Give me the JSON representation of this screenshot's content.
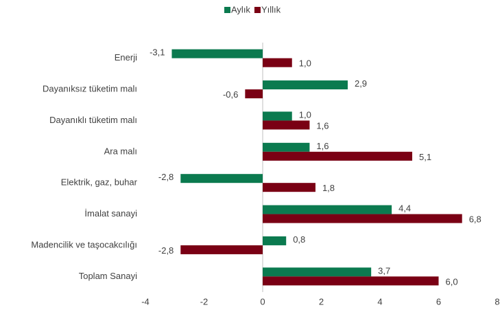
{
  "chart_data": {
    "type": "bar",
    "orientation": "horizontal",
    "categories": [
      "Enerji",
      "Dayanıksız tüketim malı",
      "Dayanıklı tüketim malı",
      "Ara malı",
      "Elektrik, gaz, buhar",
      "İmalat sanayi",
      "Madencilik ve taşocakcılığı",
      "Toplam Sanayi"
    ],
    "series": [
      {
        "name": "Aylık",
        "color": "#0b7a4f",
        "values": [
          -3.1,
          2.9,
          1.0,
          1.6,
          -2.8,
          4.4,
          0.8,
          3.7
        ],
        "value_labels": [
          "-3,1",
          "2,9",
          "1,0",
          "1,6",
          "-2,8",
          "4,4",
          "0,8",
          "3,7"
        ]
      },
      {
        "name": "Yıllık",
        "color": "#7a0014",
        "values": [
          1.0,
          -0.6,
          1.6,
          5.1,
          1.8,
          6.8,
          -2.8,
          6.0
        ],
        "value_labels": [
          "1,0",
          "-0,6",
          "1,6",
          "5,1",
          "1,8",
          "6,8",
          "-2,8",
          "6,0"
        ]
      }
    ],
    "xlim": [
      -4,
      8
    ],
    "xticks": [
      -4,
      -2,
      0,
      2,
      4,
      6,
      8
    ],
    "legend": "top"
  }
}
